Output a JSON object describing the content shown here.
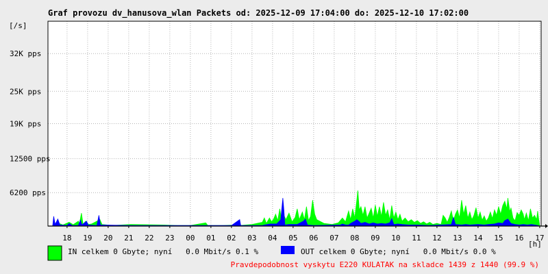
{
  "chart_data": {
    "type": "area",
    "title": "Graf provozu dv_hanusova_wlan Packets od: 2025-12-09 17:04:00 do: 2025-12-10 17:02:00",
    "ylabel": "[/s]",
    "xlabel": "[h]",
    "ylim": [
      0,
      38000
    ],
    "grid": true,
    "y_ticks": [
      {
        "value": 6200,
        "label": "6200 pps"
      },
      {
        "value": 12500,
        "label": "12500 pps"
      },
      {
        "value": 19000,
        "label": "19K pps"
      },
      {
        "value": 25000,
        "label": "25K pps"
      },
      {
        "value": 32000,
        "label": "32K pps"
      }
    ],
    "x_ticks": [
      "18",
      "19",
      "20",
      "21",
      "22",
      "23",
      "00",
      "01",
      "02",
      "03",
      "04",
      "05",
      "06",
      "07",
      "08",
      "09",
      "10",
      "11",
      "12",
      "13",
      "14",
      "15",
      "16",
      "17"
    ],
    "series": [
      {
        "color": "#00ff00",
        "points": [
          [
            17.3,
            0
          ],
          [
            17.35,
            900
          ],
          [
            17.45,
            200
          ],
          [
            17.6,
            500
          ],
          [
            17.8,
            200
          ],
          [
            18.1,
            700
          ],
          [
            18.3,
            250
          ],
          [
            18.55,
            900
          ],
          [
            18.6,
            400
          ],
          [
            18.7,
            2400
          ],
          [
            18.78,
            300
          ],
          [
            18.9,
            900
          ],
          [
            19.05,
            300
          ],
          [
            19.2,
            400
          ],
          [
            19.6,
            1200
          ],
          [
            19.7,
            300
          ],
          [
            20.2,
            100
          ],
          [
            21.1,
            300
          ],
          [
            22.7,
            200
          ],
          [
            23.4,
            100
          ],
          [
            24.0,
            100
          ],
          [
            24.75,
            600
          ],
          [
            24.85,
            100
          ],
          [
            25.6,
            100
          ],
          [
            26.2,
            200
          ],
          [
            26.4,
            100
          ],
          [
            27.0,
            300
          ],
          [
            27.5,
            700
          ],
          [
            27.6,
            1500
          ],
          [
            27.7,
            500
          ],
          [
            27.85,
            1500
          ],
          [
            27.95,
            800
          ],
          [
            28.05,
            1300
          ],
          [
            28.15,
            2200
          ],
          [
            28.25,
            1000
          ],
          [
            28.35,
            3200
          ],
          [
            28.45,
            900
          ],
          [
            28.55,
            2000
          ],
          [
            28.65,
            1200
          ],
          [
            28.8,
            2400
          ],
          [
            28.95,
            800
          ],
          [
            29.1,
            1600
          ],
          [
            29.2,
            3200
          ],
          [
            29.3,
            1200
          ],
          [
            29.45,
            2600
          ],
          [
            29.55,
            1200
          ],
          [
            29.65,
            3600
          ],
          [
            29.75,
            1000
          ],
          [
            29.85,
            1800
          ],
          [
            29.95,
            4800
          ],
          [
            30.05,
            2200
          ],
          [
            30.15,
            1200
          ],
          [
            30.5,
            500
          ],
          [
            30.9,
            300
          ],
          [
            31.2,
            600
          ],
          [
            31.4,
            1500
          ],
          [
            31.55,
            800
          ],
          [
            31.7,
            2800
          ],
          [
            31.8,
            1200
          ],
          [
            31.9,
            3200
          ],
          [
            32.0,
            1500
          ],
          [
            32.1,
            4800
          ],
          [
            32.15,
            6600
          ],
          [
            32.22,
            3000
          ],
          [
            32.3,
            3600
          ],
          [
            32.4,
            2000
          ],
          [
            32.5,
            3600
          ],
          [
            32.6,
            1500
          ],
          [
            32.7,
            2400
          ],
          [
            32.8,
            3300
          ],
          [
            32.9,
            1500
          ],
          [
            33.0,
            3900
          ],
          [
            33.1,
            1800
          ],
          [
            33.2,
            3600
          ],
          [
            33.3,
            1800
          ],
          [
            33.4,
            4400
          ],
          [
            33.5,
            2000
          ],
          [
            33.6,
            3000
          ],
          [
            33.7,
            1200
          ],
          [
            33.8,
            3800
          ],
          [
            33.9,
            1500
          ],
          [
            34.0,
            2600
          ],
          [
            34.1,
            1200
          ],
          [
            34.2,
            2200
          ],
          [
            34.3,
            900
          ],
          [
            34.45,
            1500
          ],
          [
            34.6,
            800
          ],
          [
            34.75,
            1200
          ],
          [
            34.9,
            700
          ],
          [
            35.05,
            1000
          ],
          [
            35.2,
            500
          ],
          [
            35.35,
            800
          ],
          [
            35.5,
            400
          ],
          [
            35.65,
            700
          ],
          [
            35.8,
            300
          ],
          [
            36.0,
            500
          ],
          [
            36.2,
            300
          ],
          [
            36.3,
            2000
          ],
          [
            36.4,
            1500
          ],
          [
            36.5,
            700
          ],
          [
            36.6,
            1600
          ],
          [
            36.7,
            2800
          ],
          [
            36.8,
            1000
          ],
          [
            36.9,
            2200
          ],
          [
            37.0,
            3000
          ],
          [
            37.1,
            1500
          ],
          [
            37.2,
            4800
          ],
          [
            37.3,
            2200
          ],
          [
            37.4,
            3800
          ],
          [
            37.5,
            1500
          ],
          [
            37.6,
            2600
          ],
          [
            37.7,
            1200
          ],
          [
            37.8,
            2000
          ],
          [
            37.9,
            3400
          ],
          [
            38.0,
            1500
          ],
          [
            38.1,
            2600
          ],
          [
            38.2,
            1100
          ],
          [
            38.3,
            1900
          ],
          [
            38.4,
            900
          ],
          [
            38.5,
            1500
          ],
          [
            38.6,
            2600
          ],
          [
            38.7,
            1400
          ],
          [
            38.8,
            3000
          ],
          [
            38.9,
            2000
          ],
          [
            39.0,
            3600
          ],
          [
            39.1,
            2200
          ],
          [
            39.2,
            3800
          ],
          [
            39.3,
            4600
          ],
          [
            39.4,
            3200
          ],
          [
            39.45,
            5200
          ],
          [
            39.55,
            2600
          ],
          [
            39.6,
            3400
          ],
          [
            39.7,
            1500
          ],
          [
            39.8,
            1000
          ],
          [
            39.9,
            2500
          ],
          [
            40.0,
            2000
          ],
          [
            40.1,
            3000
          ],
          [
            40.2,
            2200
          ],
          [
            40.25,
            1200
          ],
          [
            40.35,
            2400
          ],
          [
            40.45,
            1000
          ],
          [
            40.55,
            3200
          ],
          [
            40.65,
            1500
          ],
          [
            40.75,
            2000
          ],
          [
            40.85,
            1200
          ],
          [
            40.9,
            2800
          ],
          [
            40.95,
            1300
          ],
          [
            41.0,
            0
          ]
        ]
      },
      {
        "color": "#0000ff",
        "points": [
          [
            17.3,
            0
          ],
          [
            17.35,
            1800
          ],
          [
            17.42,
            300
          ],
          [
            17.55,
            1300
          ],
          [
            17.65,
            200
          ],
          [
            18.0,
            100
          ],
          [
            18.1,
            500
          ],
          [
            18.25,
            100
          ],
          [
            18.55,
            100
          ],
          [
            18.65,
            1100
          ],
          [
            18.72,
            200
          ],
          [
            18.95,
            900
          ],
          [
            19.02,
            200
          ],
          [
            19.45,
            100
          ],
          [
            19.55,
            2000
          ],
          [
            19.62,
            200
          ],
          [
            21.1,
            100
          ],
          [
            22.7,
            100
          ],
          [
            25.0,
            100
          ],
          [
            26.0,
            100
          ],
          [
            26.4,
            1200
          ],
          [
            26.45,
            100
          ],
          [
            27.5,
            100
          ],
          [
            27.6,
            200
          ],
          [
            27.9,
            400
          ],
          [
            28.2,
            400
          ],
          [
            28.4,
            1200
          ],
          [
            28.5,
            5200
          ],
          [
            28.55,
            3000
          ],
          [
            28.6,
            200
          ],
          [
            28.8,
            300
          ],
          [
            29.2,
            300
          ],
          [
            29.5,
            900
          ],
          [
            29.6,
            1300
          ],
          [
            29.7,
            200
          ],
          [
            30.0,
            100
          ],
          [
            31.3,
            200
          ],
          [
            31.4,
            400
          ],
          [
            31.55,
            200
          ],
          [
            31.7,
            200
          ],
          [
            31.8,
            500
          ],
          [
            32.0,
            900
          ],
          [
            32.1,
            1200
          ],
          [
            32.2,
            900
          ],
          [
            32.3,
            500
          ],
          [
            32.5,
            700
          ],
          [
            32.7,
            400
          ],
          [
            32.9,
            600
          ],
          [
            33.1,
            400
          ],
          [
            33.3,
            500
          ],
          [
            33.5,
            400
          ],
          [
            33.7,
            600
          ],
          [
            33.8,
            1400
          ],
          [
            33.9,
            300
          ],
          [
            34.1,
            400
          ],
          [
            34.3,
            300
          ],
          [
            34.6,
            200
          ],
          [
            35.0,
            200
          ],
          [
            35.6,
            100
          ],
          [
            36.7,
            300
          ],
          [
            36.8,
            1600
          ],
          [
            36.9,
            300
          ],
          [
            37.2,
            200
          ],
          [
            37.4,
            300
          ],
          [
            37.6,
            200
          ],
          [
            38.0,
            300
          ],
          [
            38.3,
            200
          ],
          [
            38.5,
            300
          ],
          [
            38.8,
            400
          ],
          [
            39.0,
            600
          ],
          [
            39.2,
            500
          ],
          [
            39.3,
            1000
          ],
          [
            39.45,
            1300
          ],
          [
            39.6,
            500
          ],
          [
            39.8,
            300
          ],
          [
            40.0,
            200
          ],
          [
            40.2,
            300
          ],
          [
            40.4,
            200
          ],
          [
            40.6,
            300
          ],
          [
            40.9,
            100
          ],
          [
            41.0,
            0
          ]
        ]
      }
    ]
  },
  "legend": {
    "in": {
      "color": "#00ff00",
      "text": "IN celkem 0 Gbyte; nyní   0.0 Mbit/s 0.1 %"
    },
    "out": {
      "color": "#0000ff",
      "text": "OUT celkem 0 Gbyte; nyní   0.0 Mbit/s 0.0 %"
    }
  },
  "footer_note": "Pravdepodobnost vyskytu E220 KULATAK na skladce 1439 z 1440 (99.9 %)",
  "colors": {
    "background": "#ececec",
    "plot_bg": "#ffffff",
    "grid": "#b4b4b4",
    "note": "#ff0000"
  }
}
